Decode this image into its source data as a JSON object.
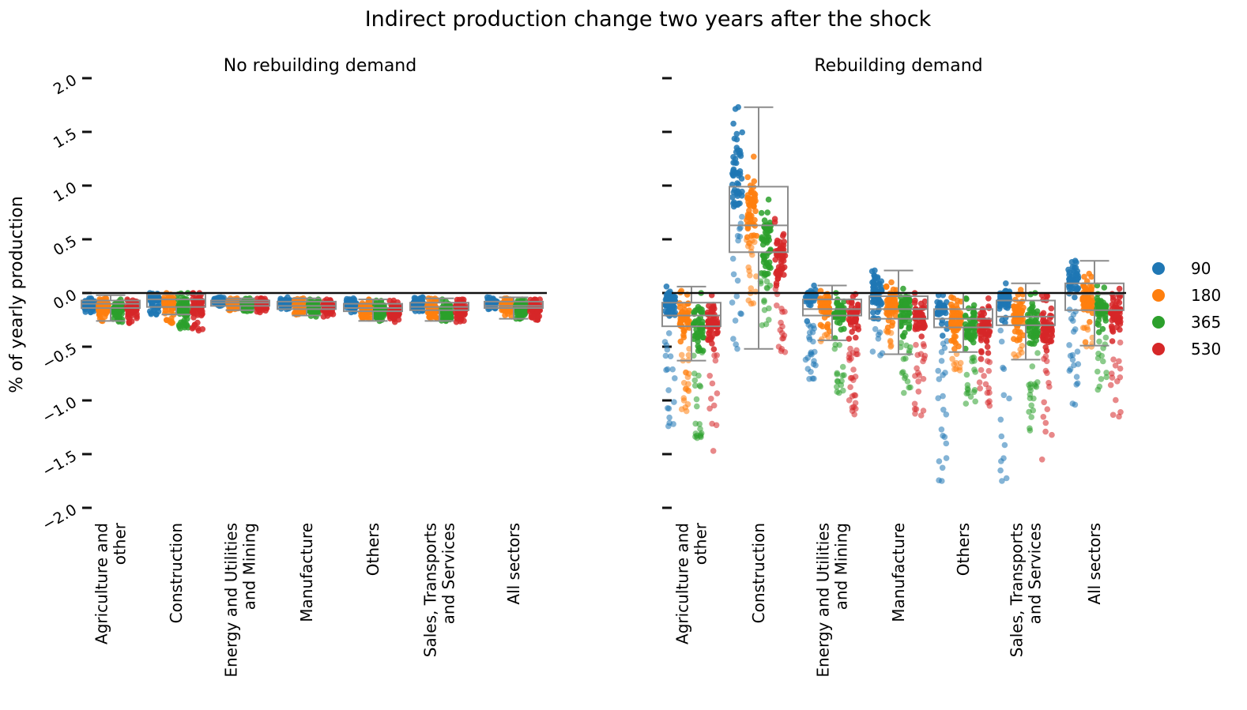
{
  "chart_data": {
    "type": "box-strip",
    "title": "Indirect production change two years after the shock",
    "ylabel": "% of yearly production",
    "ylim": [
      -2.0,
      2.0
    ],
    "yticks": [
      "2.0",
      "1.5",
      "1.0",
      "0.5",
      "0.0",
      "−0.5",
      "−1.0",
      "−1.5",
      "−2.0"
    ],
    "categories": [
      "Agriculture and\nother",
      "Construction",
      "Energy and Utilities\nand Mining",
      "Manufacture",
      "Others",
      "Sales, Transports\nand Services",
      "All sectors"
    ],
    "legend": {
      "position": "right",
      "entries": [
        {
          "label": "90",
          "color": "#1f77b4"
        },
        {
          "label": "180",
          "color": "#ff7f0e"
        },
        {
          "label": "365",
          "color": "#2ca02c"
        },
        {
          "label": "530",
          "color": "#d62728"
        }
      ]
    },
    "reference_line_y": 0,
    "panels": [
      {
        "title": "No rebuilding demand",
        "boxes": [
          {
            "category": "Agriculture and\nother",
            "whisker_low": -0.26,
            "q1": -0.14,
            "median": -0.1,
            "q3": -0.07,
            "whisker_high": -0.02
          },
          {
            "category": "Construction",
            "whisker_low": -0.2,
            "q1": -0.13,
            "median": -0.06,
            "q3": -0.01,
            "whisker_high": 0.0
          },
          {
            "category": "Energy and Utilities\nand Mining",
            "whisker_low": -0.16,
            "q1": -0.12,
            "median": -0.09,
            "q3": -0.07,
            "whisker_high": -0.05
          },
          {
            "category": "Manufacture",
            "whisker_low": -0.21,
            "q1": -0.15,
            "median": -0.12,
            "q3": -0.08,
            "whisker_high": -0.05
          },
          {
            "category": "Others",
            "whisker_low": -0.26,
            "q1": -0.17,
            "median": -0.14,
            "q3": -0.1,
            "whisker_high": -0.06
          },
          {
            "category": "Sales, Transports\nand Services",
            "whisker_low": -0.26,
            "q1": -0.16,
            "median": -0.13,
            "q3": -0.09,
            "whisker_high": -0.05
          },
          {
            "category": "All sectors",
            "whisker_low": -0.24,
            "q1": -0.14,
            "median": -0.12,
            "q3": -0.08,
            "whisker_high": -0.04
          }
        ],
        "strips": [
          {
            "category": "Agriculture and\nother",
            "series": [
              {
                "name": "90",
                "low": -0.18,
                "high": -0.05,
                "center": -0.11
              },
              {
                "name": "180",
                "low": -0.26,
                "high": -0.05,
                "center": -0.13
              },
              {
                "name": "365",
                "low": -0.27,
                "high": -0.06,
                "center": -0.14
              },
              {
                "name": "530",
                "low": -0.28,
                "high": -0.06,
                "center": -0.14
              }
            ]
          },
          {
            "category": "Construction",
            "series": [
              {
                "name": "90",
                "low": -0.2,
                "high": 0.0,
                "center": -0.05
              },
              {
                "name": "180",
                "low": -0.28,
                "high": 0.0,
                "center": -0.1
              },
              {
                "name": "365",
                "low": -0.33,
                "high": 0.0,
                "center": -0.13
              },
              {
                "name": "530",
                "low": -0.35,
                "high": 0.0,
                "center": -0.14
              }
            ]
          },
          {
            "category": "Energy and Utilities\nand Mining",
            "series": [
              {
                "name": "90",
                "low": -0.12,
                "high": -0.04,
                "center": -0.08
              },
              {
                "name": "180",
                "low": -0.16,
                "high": -0.05,
                "center": -0.1
              },
              {
                "name": "365",
                "low": -0.17,
                "high": -0.05,
                "center": -0.11
              },
              {
                "name": "530",
                "low": -0.18,
                "high": -0.05,
                "center": -0.11
              }
            ]
          },
          {
            "category": "Manufacture",
            "series": [
              {
                "name": "90",
                "low": -0.15,
                "high": -0.04,
                "center": -0.09
              },
              {
                "name": "180",
                "low": -0.2,
                "high": -0.05,
                "center": -0.12
              },
              {
                "name": "365",
                "low": -0.22,
                "high": -0.06,
                "center": -0.14
              },
              {
                "name": "530",
                "low": -0.22,
                "high": -0.06,
                "center": -0.14
              }
            ]
          },
          {
            "category": "Others",
            "series": [
              {
                "name": "90",
                "low": -0.18,
                "high": -0.05,
                "center": -0.11
              },
              {
                "name": "180",
                "low": -0.24,
                "high": -0.06,
                "center": -0.14
              },
              {
                "name": "365",
                "low": -0.26,
                "high": -0.07,
                "center": -0.16
              },
              {
                "name": "530",
                "low": -0.27,
                "high": -0.07,
                "center": -0.17
              }
            ]
          },
          {
            "category": "Sales, Transports\nand Services",
            "series": [
              {
                "name": "90",
                "low": -0.17,
                "high": -0.04,
                "center": -0.1
              },
              {
                "name": "180",
                "low": -0.24,
                "high": -0.05,
                "center": -0.14
              },
              {
                "name": "365",
                "low": -0.26,
                "high": -0.06,
                "center": -0.16
              },
              {
                "name": "530",
                "low": -0.27,
                "high": -0.06,
                "center": -0.16
              }
            ]
          },
          {
            "category": "All sectors",
            "series": [
              {
                "name": "90",
                "low": -0.15,
                "high": -0.04,
                "center": -0.09
              },
              {
                "name": "180",
                "low": -0.22,
                "high": -0.05,
                "center": -0.13
              },
              {
                "name": "365",
                "low": -0.24,
                "high": -0.06,
                "center": -0.14
              },
              {
                "name": "530",
                "low": -0.25,
                "high": -0.06,
                "center": -0.15
              }
            ]
          }
        ]
      },
      {
        "title": "Rebuilding demand",
        "boxes": [
          {
            "category": "Agriculture and\nother",
            "whisker_low": -0.63,
            "q1": -0.31,
            "median": -0.21,
            "q3": -0.09,
            "whisker_high": 0.06
          },
          {
            "category": "Construction",
            "whisker_low": -0.52,
            "q1": 0.38,
            "median": 0.63,
            "q3": 0.99,
            "whisker_high": 1.73
          },
          {
            "category": "Energy and Utilities\nand Mining",
            "whisker_low": -0.44,
            "q1": -0.21,
            "median": -0.15,
            "q3": -0.06,
            "whisker_high": 0.07
          },
          {
            "category": "Manufacture",
            "whisker_low": -0.57,
            "q1": -0.24,
            "median": -0.15,
            "q3": -0.03,
            "whisker_high": 0.21
          },
          {
            "category": "Others",
            "whisker_low": -0.55,
            "q1": -0.32,
            "median": -0.24,
            "q3": -0.15,
            "whisker_high": 0.0
          },
          {
            "category": "Sales, Transports\nand Services",
            "whisker_low": -0.62,
            "q1": -0.3,
            "median": -0.22,
            "q3": -0.07,
            "whisker_high": 0.09
          },
          {
            "category": "All sectors",
            "whisker_low": -0.49,
            "q1": -0.16,
            "median": -0.01,
            "q3": 0.09,
            "whisker_high": 0.3
          }
        ],
        "strips": [
          {
            "category": "Agriculture and\nother",
            "series": [
              {
                "name": "90",
                "low": -1.24,
                "high": 0.06,
                "center": -0.1
              },
              {
                "name": "180",
                "low": -1.1,
                "high": 0.02,
                "center": -0.25
              },
              {
                "name": "365",
                "low": -1.35,
                "high": 0.0,
                "center": -0.3
              },
              {
                "name": "530",
                "low": -1.47,
                "high": -0.02,
                "center": -0.3
              }
            ]
          },
          {
            "category": "Construction",
            "series": [
              {
                "name": "90",
                "low": -0.52,
                "high": 1.73,
                "center": 1.05
              },
              {
                "name": "180",
                "low": -0.1,
                "high": 1.27,
                "center": 0.75
              },
              {
                "name": "365",
                "low": -0.3,
                "high": 0.87,
                "center": 0.42
              },
              {
                "name": "530",
                "low": -0.55,
                "high": 0.69,
                "center": 0.3
              }
            ]
          },
          {
            "category": "Energy and Utilities\nand Mining",
            "series": [
              {
                "name": "90",
                "low": -0.8,
                "high": 0.07,
                "center": -0.03
              },
              {
                "name": "180",
                "low": -0.45,
                "high": 0.02,
                "center": -0.12
              },
              {
                "name": "365",
                "low": -0.93,
                "high": 0.0,
                "center": -0.18
              },
              {
                "name": "530",
                "low": -1.13,
                "high": -0.01,
                "center": -0.2
              }
            ]
          },
          {
            "category": "Manufacture",
            "series": [
              {
                "name": "90",
                "low": -0.58,
                "high": 0.21,
                "center": 0.0
              },
              {
                "name": "180",
                "low": -0.5,
                "high": 0.1,
                "center": -0.1
              },
              {
                "name": "365",
                "low": -0.93,
                "high": 0.04,
                "center": -0.2
              },
              {
                "name": "530",
                "low": -1.14,
                "high": 0.0,
                "center": -0.22
              }
            ]
          },
          {
            "category": "Others",
            "series": [
              {
                "name": "90",
                "low": -1.75,
                "high": -0.02,
                "center": -0.15
              },
              {
                "name": "180",
                "low": -0.72,
                "high": -0.04,
                "center": -0.28
              },
              {
                "name": "365",
                "low": -1.03,
                "high": -0.05,
                "center": -0.3
              },
              {
                "name": "530",
                "low": -1.05,
                "high": -0.05,
                "center": -0.32
              }
            ]
          },
          {
            "category": "Sales, Transports\nand Services",
            "series": [
              {
                "name": "90",
                "low": -1.75,
                "high": 0.09,
                "center": -0.05
              },
              {
                "name": "180",
                "low": -0.6,
                "high": 0.03,
                "center": -0.2
              },
              {
                "name": "365",
                "low": -1.28,
                "high": 0.0,
                "center": -0.3
              },
              {
                "name": "530",
                "low": -1.55,
                "high": -0.02,
                "center": -0.32
              }
            ]
          },
          {
            "category": "All sectors",
            "series": [
              {
                "name": "90",
                "low": -1.04,
                "high": 0.3,
                "center": 0.12
              },
              {
                "name": "180",
                "low": -0.5,
                "high": 0.18,
                "center": -0.05
              },
              {
                "name": "365",
                "low": -0.9,
                "high": 0.07,
                "center": -0.14
              },
              {
                "name": "530",
                "low": -1.15,
                "high": 0.04,
                "center": -0.2
              }
            ]
          }
        ]
      }
    ]
  }
}
